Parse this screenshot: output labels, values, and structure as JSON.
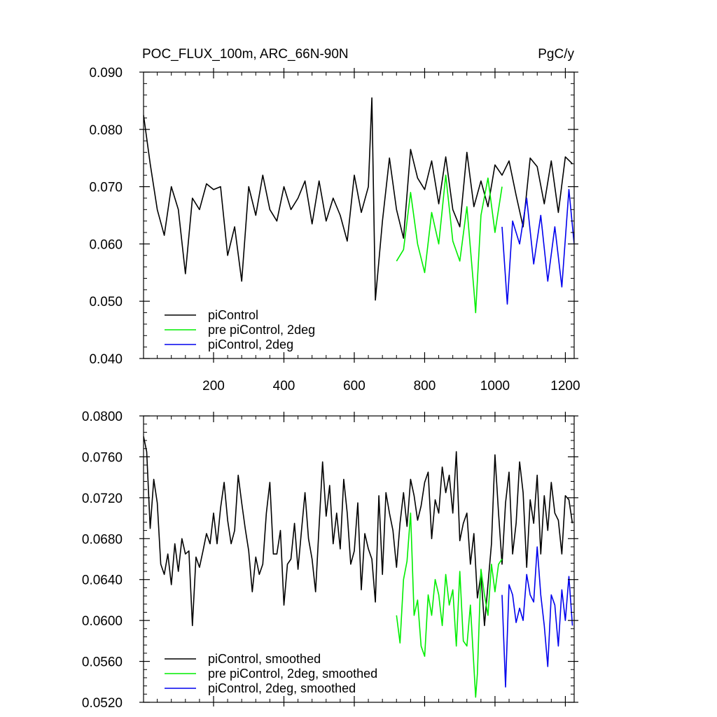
{
  "chart_data": [
    {
      "type": "line",
      "title": "POC_FLUX_100m, ARC_66N-90N",
      "units": "PgC/y",
      "xlim": [
        1,
        1225
      ],
      "ylim": [
        0.04,
        0.09
      ],
      "xticks": [
        200,
        400,
        600,
        800,
        1000,
        1200
      ],
      "xtick_labels": [
        "200",
        "400",
        "600",
        "800",
        "1000",
        "1200"
      ],
      "yticks": [
        0.04,
        0.05,
        0.06,
        0.07,
        0.08,
        0.09
      ],
      "ytick_labels": [
        "0.040",
        "0.050",
        "0.060",
        "0.070",
        "0.080",
        "0.090"
      ],
      "legend_position": "bottom-left",
      "grid": false,
      "series": [
        {
          "name": "piControl",
          "color": "#000000",
          "x": [
            1,
            20,
            40,
            60,
            80,
            100,
            120,
            140,
            160,
            180,
            200,
            220,
            240,
            260,
            280,
            300,
            320,
            340,
            360,
            380,
            400,
            420,
            440,
            460,
            480,
            500,
            520,
            540,
            560,
            580,
            600,
            620,
            640,
            650,
            660,
            680,
            700,
            720,
            740,
            760,
            780,
            800,
            820,
            840,
            860,
            880,
            900,
            920,
            940,
            960,
            980,
            1000,
            1020,
            1040,
            1060,
            1080,
            1100,
            1120,
            1140,
            1160,
            1180,
            1200,
            1220
          ],
          "y": [
            0.0825,
            0.074,
            0.066,
            0.0615,
            0.07,
            0.066,
            0.0548,
            0.068,
            0.066,
            0.0705,
            0.0695,
            0.07,
            0.058,
            0.063,
            0.0535,
            0.07,
            0.065,
            0.072,
            0.066,
            0.064,
            0.07,
            0.066,
            0.068,
            0.071,
            0.0635,
            0.071,
            0.064,
            0.068,
            0.065,
            0.0605,
            0.072,
            0.0655,
            0.07,
            0.0855,
            0.0502,
            0.064,
            0.075,
            0.066,
            0.061,
            0.0765,
            0.0715,
            0.0695,
            0.0745,
            0.067,
            0.0752,
            0.066,
            0.063,
            0.076,
            0.0665,
            0.071,
            0.0665,
            0.0738,
            0.072,
            0.0745,
            0.0685,
            0.063,
            0.075,
            0.0735,
            0.067,
            0.0745,
            0.0655,
            0.0752,
            0.074
          ]
        },
        {
          "name": "pre piControl, 2deg",
          "color": "#00ee00",
          "x": [
            720,
            740,
            760,
            780,
            800,
            820,
            840,
            860,
            880,
            900,
            920,
            940,
            945,
            960,
            980,
            1000,
            1020
          ],
          "y": [
            0.057,
            0.059,
            0.069,
            0.06,
            0.055,
            0.0655,
            0.06,
            0.072,
            0.0605,
            0.057,
            0.0665,
            0.052,
            0.048,
            0.065,
            0.0715,
            0.062,
            0.07
          ]
        },
        {
          "name": "piControl, 2deg",
          "color": "#0000ee",
          "x": [
            1020,
            1035,
            1050,
            1070,
            1090,
            1110,
            1130,
            1150,
            1170,
            1190,
            1210,
            1225
          ],
          "y": [
            0.063,
            0.0495,
            0.064,
            0.06,
            0.068,
            0.0565,
            0.065,
            0.0535,
            0.063,
            0.0525,
            0.0695,
            0.06
          ]
        }
      ]
    },
    {
      "type": "line",
      "xlim": [
        1,
        1225
      ],
      "ylim": [
        0.052,
        0.08
      ],
      "yticks": [
        0.052,
        0.056,
        0.06,
        0.064,
        0.068,
        0.072,
        0.076,
        0.08
      ],
      "ytick_labels": [
        "0.0520",
        "0.0560",
        "0.0600",
        "0.0640",
        "0.0680",
        "0.0720",
        "0.0760",
        "0.0800"
      ],
      "legend_position": "bottom-left",
      "grid": false,
      "series": [
        {
          "name": "piControl, smoothed",
          "color": "#000000",
          "x": [
            1,
            10,
            20,
            30,
            40,
            50,
            60,
            70,
            80,
            90,
            100,
            110,
            120,
            130,
            140,
            150,
            160,
            170,
            180,
            190,
            200,
            210,
            220,
            230,
            240,
            250,
            260,
            270,
            280,
            290,
            300,
            310,
            320,
            330,
            340,
            350,
            360,
            370,
            380,
            390,
            400,
            410,
            420,
            430,
            440,
            450,
            460,
            470,
            480,
            490,
            500,
            510,
            520,
            530,
            540,
            550,
            560,
            570,
            580,
            590,
            600,
            610,
            620,
            630,
            640,
            650,
            660,
            670,
            680,
            690,
            700,
            710,
            720,
            730,
            740,
            750,
            760,
            770,
            780,
            790,
            800,
            810,
            820,
            830,
            840,
            850,
            860,
            870,
            880,
            890,
            900,
            910,
            920,
            930,
            940,
            950,
            960,
            970,
            980,
            990,
            1000,
            1010,
            1020,
            1030,
            1040,
            1050,
            1060,
            1070,
            1080,
            1090,
            1100,
            1110,
            1120,
            1130,
            1140,
            1150,
            1160,
            1170,
            1180,
            1190,
            1200,
            1210,
            1220
          ],
          "y": [
            0.078,
            0.0765,
            0.069,
            0.0738,
            0.0715,
            0.0655,
            0.0645,
            0.0665,
            0.0635,
            0.0675,
            0.0648,
            0.068,
            0.0665,
            0.0668,
            0.0595,
            0.0662,
            0.0652,
            0.0668,
            0.0685,
            0.0675,
            0.0705,
            0.0675,
            0.071,
            0.0735,
            0.0698,
            0.0675,
            0.0688,
            0.0742,
            0.0715,
            0.069,
            0.0668,
            0.0628,
            0.0662,
            0.0645,
            0.0655,
            0.0705,
            0.0735,
            0.0665,
            0.0665,
            0.0688,
            0.0615,
            0.0655,
            0.066,
            0.0695,
            0.065,
            0.0688,
            0.0725,
            0.068,
            0.066,
            0.0628,
            0.0692,
            0.0755,
            0.0702,
            0.0732,
            0.0675,
            0.0705,
            0.067,
            0.0738,
            0.0705,
            0.0655,
            0.0668,
            0.0715,
            0.063,
            0.0685,
            0.067,
            0.066,
            0.0618,
            0.0722,
            0.0645,
            0.0725,
            0.0705,
            0.0688,
            0.0652,
            0.0695,
            0.0725,
            0.0692,
            0.0738,
            0.0722,
            0.0698,
            0.0712,
            0.0735,
            0.0745,
            0.068,
            0.0718,
            0.0705,
            0.075,
            0.0725,
            0.0742,
            0.0705,
            0.0765,
            0.0678,
            0.0695,
            0.0705,
            0.0655,
            0.0685,
            0.0622,
            0.0645,
            0.0595,
            0.0635,
            0.0675,
            0.0762,
            0.0705,
            0.0655,
            0.0715,
            0.0745,
            0.0665,
            0.0695,
            0.0755,
            0.0725,
            0.0652,
            0.0718,
            0.0695,
            0.0742,
            0.0665,
            0.0722,
            0.0688,
            0.0735,
            0.0705,
            0.0698,
            0.0665,
            0.0722,
            0.0718,
            0.0695
          ]
        },
        {
          "name": "pre piControl, 2deg, smoothed",
          "color": "#00ee00",
          "x": [
            720,
            730,
            740,
            750,
            760,
            770,
            780,
            790,
            800,
            810,
            820,
            830,
            840,
            850,
            860,
            870,
            880,
            890,
            900,
            910,
            920,
            930,
            940,
            945,
            950,
            960,
            970,
            980,
            990,
            1000,
            1010,
            1020
          ],
          "y": [
            0.0605,
            0.0578,
            0.064,
            0.0658,
            0.0705,
            0.0605,
            0.062,
            0.0575,
            0.0565,
            0.0625,
            0.0605,
            0.064,
            0.0625,
            0.0595,
            0.0645,
            0.0615,
            0.063,
            0.0575,
            0.0648,
            0.058,
            0.0575,
            0.0615,
            0.0555,
            0.0525,
            0.0548,
            0.065,
            0.0625,
            0.0605,
            0.0655,
            0.0628,
            0.0655,
            0.066
          ]
        },
        {
          "name": "piControl, 2deg, smoothed",
          "color": "#0000ee",
          "x": [
            1020,
            1030,
            1040,
            1050,
            1060,
            1070,
            1080,
            1090,
            1100,
            1110,
            1120,
            1130,
            1140,
            1150,
            1160,
            1170,
            1180,
            1190,
            1200,
            1210,
            1220
          ],
          "y": [
            0.0625,
            0.0535,
            0.0635,
            0.0625,
            0.0598,
            0.0612,
            0.06,
            0.0645,
            0.0625,
            0.0618,
            0.0672,
            0.0625,
            0.0595,
            0.0555,
            0.0625,
            0.0615,
            0.0575,
            0.063,
            0.06,
            0.0643,
            0.0595
          ]
        }
      ]
    }
  ]
}
